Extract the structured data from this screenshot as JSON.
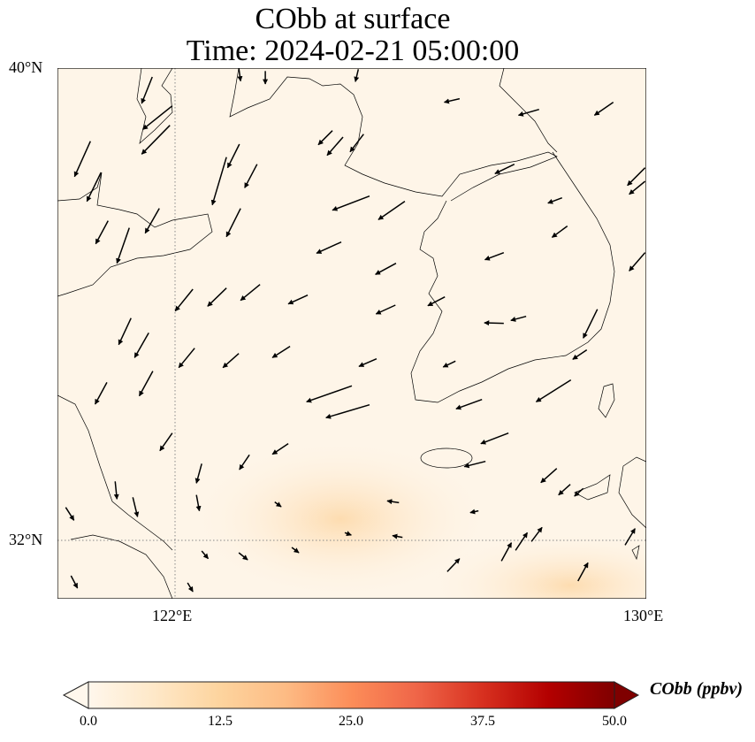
{
  "title": {
    "line1": "CObb at surface",
    "line2": "Time: 2024-02-21 05:00:00"
  },
  "axes": {
    "lat_ticks": [
      {
        "value": 40,
        "label": "40°N"
      },
      {
        "value": 32,
        "label": "32°N"
      }
    ],
    "lon_ticks": [
      {
        "value": 122,
        "label": "122°E"
      },
      {
        "value": 130,
        "label": "130°E"
      }
    ],
    "lon_range": [
      120,
      130
    ],
    "lat_range": [
      31,
      40
    ]
  },
  "colorbar": {
    "label": "CObb (ppbv)",
    "ticks": [
      "0.0",
      "12.5",
      "25.0",
      "37.5",
      "50.0"
    ],
    "range": [
      0,
      50
    ],
    "extend": "both",
    "colors": [
      "#fff7ec",
      "#fee8c8",
      "#fdd49e",
      "#fdbb84",
      "#fc8d59",
      "#ef6548",
      "#d7301f",
      "#b30000",
      "#7f0000"
    ]
  },
  "chart_data": {
    "type": "heatmap",
    "title": "CObb at surface / Time: 2024-02-21 05:00:00",
    "field": "CObb surface concentration (ppbv)",
    "field_summary": {
      "background_ppbv": 2,
      "max_region_ppbv": 10,
      "max_regions": [
        {
          "lon": 124.9,
          "lat": 32.3,
          "value": 10
        },
        {
          "lon": 128.9,
          "lat": 31.4,
          "value": 9
        }
      ]
    },
    "wind_vectors_lon_lat_u_v": [
      [
        121.61,
        39.85,
        -0.18,
        -0.45
      ],
      [
        121.95,
        39.36,
        -0.5,
        -0.4
      ],
      [
        121.91,
        39.03,
        -0.48,
        -0.49
      ],
      [
        120.56,
        38.76,
        -0.27,
        -0.6
      ],
      [
        120.74,
        38.23,
        -0.24,
        -0.49
      ],
      [
        123.09,
        38.71,
        -0.2,
        -0.4
      ],
      [
        122.87,
        38.49,
        -0.24,
        -0.81
      ],
      [
        123.39,
        38.37,
        -0.21,
        -0.4
      ],
      [
        120.86,
        37.41,
        -0.21,
        -0.39
      ],
      [
        121.22,
        37.29,
        -0.21,
        -0.6
      ],
      [
        121.73,
        37.62,
        -0.24,
        -0.42
      ],
      [
        123.11,
        37.62,
        -0.24,
        -0.48
      ],
      [
        124.67,
        38.94,
        -0.24,
        -0.24
      ],
      [
        124.85,
        38.83,
        -0.27,
        -0.31
      ],
      [
        125.2,
        38.88,
        -0.23,
        -0.3
      ],
      [
        125.3,
        37.83,
        -0.63,
        -0.24
      ],
      [
        125.9,
        37.74,
        -0.45,
        -0.31
      ],
      [
        126.83,
        39.48,
        -0.26,
        -0.06
      ],
      [
        128.18,
        39.3,
        -0.35,
        -0.1
      ],
      [
        129.44,
        39.42,
        -0.32,
        -0.22
      ],
      [
        127.76,
        38.37,
        -0.33,
        -0.16
      ],
      [
        128.57,
        37.8,
        -0.24,
        -0.09
      ],
      [
        128.66,
        37.32,
        -0.26,
        -0.19
      ],
      [
        129.98,
        38.31,
        -0.3,
        -0.3
      ],
      [
        129.98,
        38.08,
        -0.27,
        -0.22
      ],
      [
        129.98,
        36.87,
        -0.27,
        -0.31
      ],
      [
        124.82,
        37.05,
        -0.42,
        -0.19
      ],
      [
        125.75,
        36.69,
        -0.35,
        -0.19
      ],
      [
        127.58,
        36.87,
        -0.32,
        -0.12
      ],
      [
        122.3,
        36.25,
        -0.3,
        -0.37
      ],
      [
        122.87,
        36.27,
        -0.32,
        -0.31
      ],
      [
        123.44,
        36.33,
        -0.33,
        -0.27
      ],
      [
        124.25,
        36.15,
        -0.33,
        -0.15
      ],
      [
        125.74,
        35.98,
        -0.33,
        -0.15
      ],
      [
        126.58,
        36.12,
        -0.29,
        -0.15
      ],
      [
        121.25,
        35.76,
        -0.21,
        -0.45
      ],
      [
        121.55,
        35.51,
        -0.24,
        -0.42
      ],
      [
        122.33,
        35.25,
        -0.27,
        -0.33
      ],
      [
        123.08,
        35.16,
        -0.27,
        -0.24
      ],
      [
        123.95,
        35.28,
        -0.3,
        -0.19
      ],
      [
        125.42,
        35.07,
        -0.3,
        -0.13
      ],
      [
        126.76,
        35.03,
        -0.21,
        -0.1
      ],
      [
        127.58,
        35.67,
        -0.33,
        0.01
      ],
      [
        127.96,
        35.79,
        -0.26,
        -0.07
      ],
      [
        129.17,
        35.91,
        -0.24,
        -0.49
      ],
      [
        128.99,
        35.22,
        -0.24,
        -0.16
      ],
      [
        120.84,
        34.67,
        -0.2,
        -0.37
      ],
      [
        121.62,
        34.86,
        -0.23,
        -0.42
      ],
      [
        125.0,
        34.61,
        -0.77,
        -0.27
      ],
      [
        125.3,
        34.29,
        -0.74,
        -0.22
      ],
      [
        127.21,
        34.38,
        -0.44,
        -0.16
      ],
      [
        128.72,
        34.71,
        -0.59,
        -0.37
      ],
      [
        121.95,
        33.81,
        -0.21,
        -0.3
      ],
      [
        123.92,
        33.63,
        -0.27,
        -0.18
      ],
      [
        123.26,
        33.44,
        -0.17,
        -0.25
      ],
      [
        127.66,
        33.81,
        -0.47,
        -0.18
      ],
      [
        127.27,
        33.33,
        -0.36,
        -0.09
      ],
      [
        122.45,
        33.29,
        -0.09,
        -0.33
      ],
      [
        120.98,
        32.99,
        0.03,
        -0.3
      ],
      [
        121.28,
        32.72,
        0.08,
        -0.33
      ],
      [
        122.36,
        32.76,
        0.05,
        -0.27
      ],
      [
        123.69,
        32.64,
        0.11,
        -0.08
      ],
      [
        125.8,
        32.63,
        -0.2,
        0.03
      ],
      [
        127.15,
        32.49,
        -0.14,
        -0.03
      ],
      [
        128.48,
        33.21,
        -0.27,
        -0.24
      ],
      [
        128.71,
        32.94,
        -0.2,
        -0.18
      ],
      [
        128.93,
        32.87,
        -0.15,
        -0.13
      ],
      [
        120.14,
        32.55,
        0.14,
        -0.22
      ],
      [
        124.88,
        32.12,
        0.11,
        -0.04
      ],
      [
        125.86,
        32.04,
        -0.17,
        0.03
      ],
      [
        127.54,
        31.64,
        0.17,
        0.31
      ],
      [
        127.78,
        31.82,
        0.2,
        0.3
      ],
      [
        128.05,
        31.97,
        0.18,
        0.24
      ],
      [
        129.64,
        31.91,
        0.17,
        0.28
      ],
      [
        126.62,
        31.46,
        0.21,
        0.22
      ],
      [
        128.84,
        31.3,
        0.17,
        0.31
      ],
      [
        122.45,
        31.81,
        0.11,
        -0.13
      ],
      [
        123.08,
        31.78,
        0.15,
        -0.12
      ],
      [
        123.98,
        31.87,
        0.12,
        -0.09
      ],
      [
        120.23,
        31.39,
        0.11,
        -0.21
      ],
      [
        122.21,
        31.27,
        0.09,
        -0.15
      ],
      [
        123.08,
        40.0,
        0.03,
        -0.22
      ],
      [
        125.11,
        39.98,
        -0.05,
        -0.21
      ],
      [
        123.53,
        39.95,
        0.0,
        -0.22
      ]
    ]
  }
}
